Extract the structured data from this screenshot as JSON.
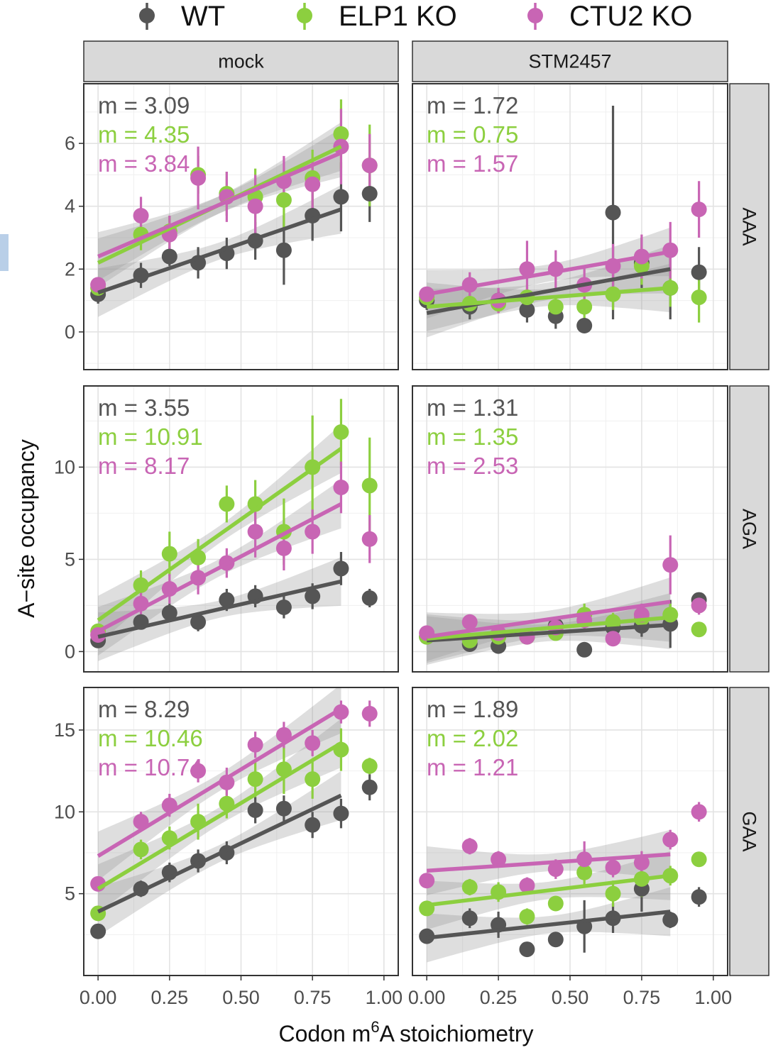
{
  "legend": [
    {
      "name": "WT",
      "color": "#555555"
    },
    {
      "name": "ELP1 KO",
      "color": "#8ccf3f"
    },
    {
      "name": "CTU2 KO",
      "color": "#c865b4"
    }
  ],
  "chart_data": {
    "type": "scatter",
    "title": "",
    "xlabel_prefix": "Codon m",
    "xlabel_sup": "6",
    "xlabel_suffix": "A stoichiometry",
    "ylabel": "A−site occupancy",
    "x_ticks": [
      "0.00",
      "0.25",
      "0.50",
      "0.75",
      "1.00"
    ],
    "x_tick_values": [
      0,
      0.25,
      0.5,
      0.75,
      1.0
    ],
    "xlim": [
      -0.05,
      1.05
    ],
    "col_facets": [
      "mock",
      "STM2457"
    ],
    "row_facets": [
      "AAA",
      "AGA",
      "GAA"
    ],
    "x_points": [
      0.0,
      0.15,
      0.25,
      0.35,
      0.45,
      0.55,
      0.65,
      0.75,
      0.85,
      0.95
    ],
    "rows": [
      {
        "facet": "AAA",
        "ylim": [
          -1.2,
          7.9
        ],
        "y_ticks": [
          0,
          2,
          4,
          6
        ],
        "y_tick_labels": [
          "0",
          "2",
          "4",
          "6"
        ],
        "panels": [
          {
            "column": "mock",
            "series": [
              {
                "name": "WT",
                "slope_label": "m = 3.09",
                "y": [
                  1.2,
                  1.8,
                  2.4,
                  2.2,
                  2.5,
                  2.9,
                  2.6,
                  3.7,
                  4.3,
                  4.4
                ],
                "err": [
                  0.3,
                  0.4,
                  0.3,
                  0.5,
                  0.5,
                  0.6,
                  1.1,
                  0.8,
                  1.1,
                  0.9
                ],
                "fit": [
                  1.25,
                  3.9
                ]
              },
              {
                "name": "ELP1 KO",
                "slope_label": "m = 4.35",
                "y": [
                  1.4,
                  3.1,
                  3.2,
                  5.0,
                  4.4,
                  4.3,
                  4.2,
                  4.9,
                  6.3,
                  5.3
                ],
                "err": [
                  0.2,
                  0.5,
                  0.5,
                  0.6,
                  0.7,
                  0.9,
                  0.9,
                  0.9,
                  1.1,
                  1.3
                ],
                "fit": [
                  2.2,
                  5.9
                ]
              },
              {
                "name": "CTU2 KO",
                "slope_label": "m = 3.84",
                "y": [
                  1.5,
                  3.7,
                  3.1,
                  4.9,
                  4.3,
                  4.0,
                  4.8,
                  4.7,
                  5.9,
                  5.3
                ],
                "err": [
                  0.2,
                  0.6,
                  0.6,
                  1.0,
                  0.8,
                  1.0,
                  0.8,
                  0.8,
                  1.2,
                  1.0
                ],
                "fit": [
                  2.4,
                  5.7
                ]
              }
            ]
          },
          {
            "column": "STM2457",
            "series": [
              {
                "name": "WT",
                "slope_label": "m = 1.72",
                "y": [
                  1.0,
                  0.8,
                  1.0,
                  0.7,
                  0.5,
                  0.2,
                  3.8,
                  2.2,
                  1.4,
                  1.9
                ],
                "err": [
                  0.3,
                  0.4,
                  0.3,
                  0.4,
                  0.4,
                  0.2,
                  3.4,
                  0.8,
                  1.0,
                  0.8
                ],
                "fit": [
                  0.6,
                  2.0
                ]
              },
              {
                "name": "ELP1 KO",
                "slope_label": "m = 0.75",
                "y": [
                  1.1,
                  0.9,
                  0.9,
                  1.1,
                  0.8,
                  0.8,
                  1.2,
                  2.1,
                  1.4,
                  1.1
                ],
                "err": [
                  0.2,
                  0.3,
                  0.3,
                  0.4,
                  0.3,
                  0.4,
                  0.5,
                  0.6,
                  0.6,
                  0.8
                ],
                "fit": [
                  0.8,
                  1.4
                ]
              },
              {
                "name": "CTU2 KO",
                "slope_label": "m = 1.57",
                "y": [
                  1.2,
                  1.5,
                  1.0,
                  2.0,
                  2.0,
                  1.5,
                  2.1,
                  2.4,
                  2.6,
                  3.9
                ],
                "err": [
                  0.2,
                  0.4,
                  0.4,
                  0.9,
                  0.6,
                  0.6,
                  0.7,
                  0.7,
                  0.9,
                  0.9
                ],
                "fit": [
                  1.2,
                  2.55
                ]
              }
            ]
          }
        ]
      },
      {
        "facet": "AGA",
        "ylim": [
          -1.1,
          14.4
        ],
        "y_ticks": [
          0,
          5,
          10
        ],
        "y_tick_labels": [
          "0",
          "5",
          "10"
        ],
        "panels": [
          {
            "column": "mock",
            "series": [
              {
                "name": "WT",
                "slope_label": "m = 3.55",
                "y": [
                  0.6,
                  1.6,
                  2.1,
                  1.6,
                  2.8,
                  3.0,
                  2.4,
                  3.0,
                  4.5,
                  2.9
                ],
                "err": [
                  0.3,
                  0.4,
                  0.5,
                  0.5,
                  0.6,
                  0.6,
                  0.6,
                  0.7,
                  0.9,
                  0.5
                ],
                "fit": [
                  0.8,
                  3.8
                ]
              },
              {
                "name": "ELP1 KO",
                "slope_label": "m = 10.91",
                "y": [
                  1.1,
                  3.6,
                  5.3,
                  5.1,
                  8.0,
                  8.0,
                  6.5,
                  10.0,
                  11.9,
                  9.0
                ],
                "err": [
                  0.3,
                  0.8,
                  1.2,
                  1.0,
                  1.0,
                  1.3,
                  1.8,
                  2.8,
                  1.8,
                  2.6
                ],
                "fit": [
                  1.7,
                  11.0
                ]
              },
              {
                "name": "CTU2 KO",
                "slope_label": "m = 8.17",
                "y": [
                  0.9,
                  2.6,
                  3.4,
                  4.0,
                  4.8,
                  6.5,
                  5.6,
                  6.5,
                  8.9,
                  6.1
                ],
                "err": [
                  0.2,
                  0.6,
                  0.8,
                  0.9,
                  0.8,
                  1.4,
                  1.2,
                  1.2,
                  1.4,
                  1.3
                ],
                "fit": [
                  1.1,
                  8.0
                ]
              }
            ]
          },
          {
            "column": "STM2457",
            "series": [
              {
                "name": "WT",
                "slope_label": "m = 1.31",
                "y": [
                  0.8,
                  0.4,
                  0.3,
                  0.8,
                  1.4,
                  0.1,
                  1.3,
                  1.4,
                  1.5,
                  2.8
                ],
                "err": [
                  0.2,
                  0.3,
                  0.2,
                  0.4,
                  0.5,
                  0.2,
                  0.6,
                  0.6,
                  1.3,
                  0.4
                ],
                "fit": [
                  0.6,
                  1.45
                ]
              },
              {
                "name": "ELP1 KO",
                "slope_label": "m = 1.35",
                "y": [
                  0.8,
                  0.6,
                  0.8,
                  0.8,
                  1.0,
                  2.0,
                  1.6,
                  1.8,
                  2.0,
                  1.2
                ],
                "err": [
                  0.2,
                  0.3,
                  0.3,
                  0.3,
                  0.4,
                  0.6,
                  0.5,
                  0.6,
                  0.6,
                  0.3
                ],
                "fit": [
                  0.7,
                  1.85
                ]
              },
              {
                "name": "CTU2 KO",
                "slope_label": "m = 2.53",
                "y": [
                  1.0,
                  1.6,
                  1.0,
                  0.8,
                  1.3,
                  1.7,
                  0.7,
                  2.0,
                  4.7,
                  2.5
                ],
                "err": [
                  0.2,
                  0.4,
                  0.4,
                  0.3,
                  0.5,
                  0.6,
                  0.3,
                  0.6,
                  1.6,
                  0.5
                ],
                "fit": [
                  0.8,
                  2.7
                ]
              }
            ]
          }
        ]
      },
      {
        "facet": "GAA",
        "ylim": [
          0.0,
          17.6
        ],
        "y_ticks": [
          5,
          10,
          15
        ],
        "y_tick_labels": [
          "5",
          "10",
          "15"
        ],
        "panels": [
          {
            "column": "mock",
            "series": [
              {
                "name": "WT",
                "slope_label": "m = 8.29",
                "y": [
                  2.7,
                  5.3,
                  6.3,
                  7.0,
                  7.5,
                  10.1,
                  10.2,
                  9.2,
                  9.9,
                  11.5
                ],
                "err": [
                  0.3,
                  0.5,
                  0.6,
                  0.7,
                  0.7,
                  0.8,
                  0.8,
                  0.8,
                  0.9,
                  0.8
                ],
                "fit": [
                  3.9,
                  11.0
                ]
              },
              {
                "name": "ELP1 KO",
                "slope_label": "m = 10.46",
                "y": [
                  3.8,
                  7.7,
                  8.4,
                  9.4,
                  10.5,
                  12.0,
                  12.6,
                  12.0,
                  13.8,
                  12.8
                ],
                "err": [
                  0.4,
                  0.6,
                  0.7,
                  1.1,
                  0.9,
                  1.1,
                  1.5,
                  1.2,
                  1.3,
                  0.5
                ],
                "fit": [
                  5.3,
                  14.2
                ]
              },
              {
                "name": "CTU2 KO",
                "slope_label": "m = 10.74",
                "y": [
                  5.6,
                  9.4,
                  10.4,
                  12.5,
                  11.8,
                  14.1,
                  14.7,
                  14.2,
                  16.1,
                  16.0
                ],
                "err": [
                  0.3,
                  0.6,
                  0.7,
                  0.7,
                  0.9,
                  0.8,
                  0.8,
                  0.8,
                  0.7,
                  0.8
                ],
                "fit": [
                  7.3,
                  16.3
                ]
              }
            ]
          },
          {
            "column": "STM2457",
            "series": [
              {
                "name": "WT",
                "slope_label": "m = 1.89",
                "y": [
                  2.4,
                  3.5,
                  3.1,
                  1.6,
                  2.2,
                  3.0,
                  3.5,
                  5.3,
                  3.4,
                  4.8
                ],
                "err": [
                  0.3,
                  0.6,
                  0.8,
                  0.4,
                  0.4,
                  1.6,
                  0.9,
                  1.4,
                  0.5,
                  0.6
                ],
                "fit": [
                  2.3,
                  3.9
                ]
              },
              {
                "name": "ELP1 KO",
                "slope_label": "m = 2.02",
                "y": [
                  4.1,
                  5.4,
                  5.1,
                  3.6,
                  4.4,
                  6.3,
                  5.0,
                  5.9,
                  6.1,
                  7.1
                ],
                "err": [
                  0.4,
                  0.5,
                  0.6,
                  0.5,
                  0.4,
                  0.9,
                  0.8,
                  1.1,
                  0.6,
                  0.3
                ],
                "fit": [
                  4.3,
                  6.1
                ]
              },
              {
                "name": "CTU2 KO",
                "slope_label": "m = 1.21",
                "y": [
                  5.8,
                  7.9,
                  7.1,
                  5.5,
                  6.5,
                  7.1,
                  6.6,
                  6.9,
                  8.3,
                  10.0
                ],
                "err": [
                  0.4,
                  0.5,
                  0.5,
                  0.5,
                  0.6,
                  1.1,
                  0.6,
                  0.7,
                  0.6,
                  0.6
                ],
                "fit": [
                  6.4,
                  7.4
                ]
              }
            ]
          }
        ]
      }
    ]
  }
}
